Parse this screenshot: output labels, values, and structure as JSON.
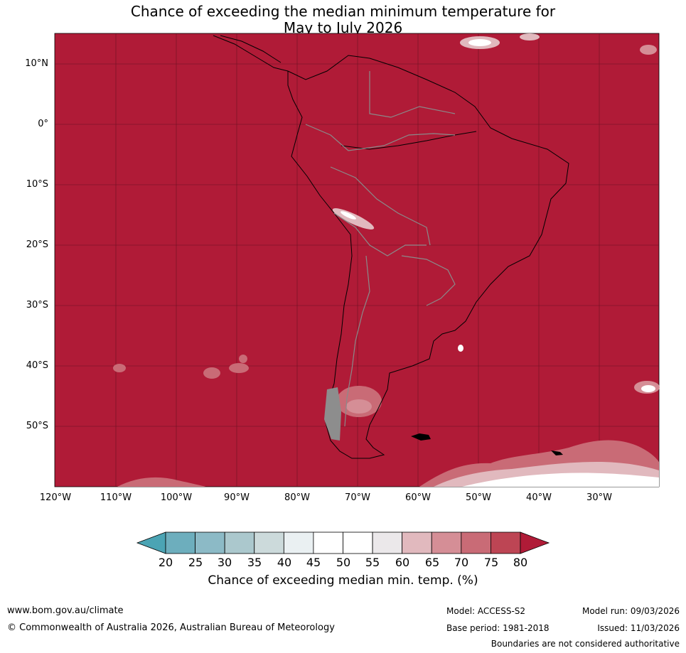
{
  "title": {
    "line1": "Chance of exceeding the median minimum temperature for",
    "line2": "May to July 2026"
  },
  "map": {
    "fill_color": "#b01b37",
    "lat_labels": [
      "10°N",
      "0°",
      "10°S",
      "20°S",
      "30°S",
      "40°S",
      "50°S"
    ],
    "lon_labels": [
      "120°W",
      "110°W",
      "100°W",
      "90°W",
      "80°W",
      "70°W",
      "60°W",
      "50°W",
      "40°W",
      "30°W"
    ]
  },
  "colorbar": {
    "label": "Chance of exceeding median min. temp. (%)",
    "ticks": [
      "20",
      "25",
      "30",
      "35",
      "40",
      "45",
      "50",
      "55",
      "60",
      "65",
      "70",
      "75",
      "80"
    ],
    "colors": [
      "#4ba4b4",
      "#6daebd",
      "#8cbac6",
      "#abc8cd",
      "#ccdadb",
      "#eaf0f2",
      "#ffffff",
      "#ffffff",
      "#ebe8ea",
      "#e1b9be",
      "#d58e96",
      "#c96b76",
      "#bd4554",
      "#b01b37"
    ]
  },
  "footer": {
    "website": "www.bom.gov.au/climate",
    "copyright": "© Commonwealth of Australia 2026, Australian Bureau of Meteorology",
    "model": "Model: ACCESS-S2",
    "base_period": "Base period: 1981-2018",
    "model_run": "Model run: 09/03/2026",
    "issued": "Issued: 11/03/2026",
    "disclaimer": "Boundaries are not considered authoritative"
  }
}
